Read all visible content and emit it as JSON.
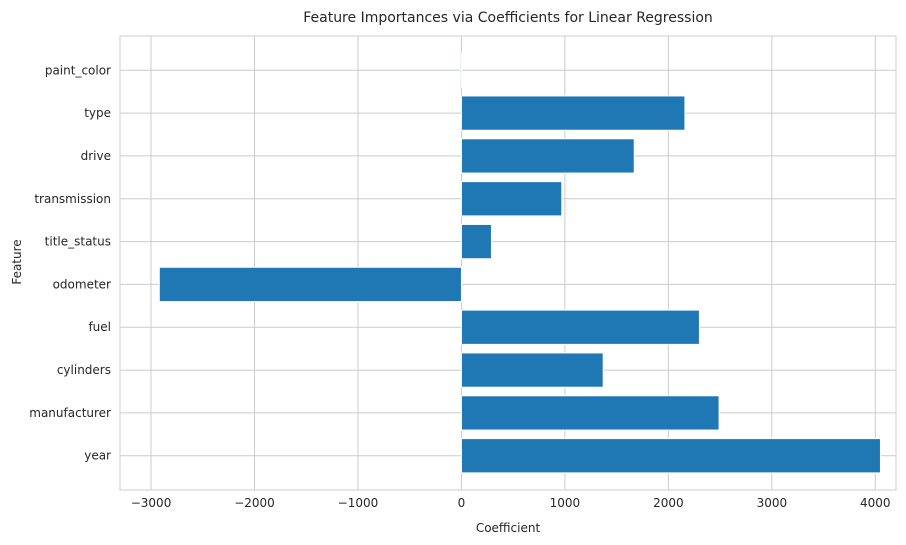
{
  "chart_data": {
    "type": "bar",
    "orientation": "horizontal",
    "title": "Feature Importances via Coefficients for Linear Regression",
    "xlabel": "Coefficient",
    "ylabel": "Feature",
    "categories": [
      "year",
      "manufacturer",
      "cylinders",
      "fuel",
      "odometer",
      "title_status",
      "transmission",
      "drive",
      "type",
      "paint_color"
    ],
    "values": [
      4050,
      2490,
      1370,
      2300,
      -2920,
      290,
      970,
      1670,
      2160,
      -10
    ],
    "xlim": [
      -3300,
      4200
    ],
    "xticks": [
      -3000,
      -2000,
      -1000,
      0,
      1000,
      2000,
      3000,
      4000
    ],
    "xtick_labels": [
      "−3000",
      "−2000",
      "−1000",
      "0",
      "1000",
      "2000",
      "3000",
      "4000"
    ],
    "bar_color": "#1f77b4",
    "grid": true,
    "legend": "none"
  }
}
